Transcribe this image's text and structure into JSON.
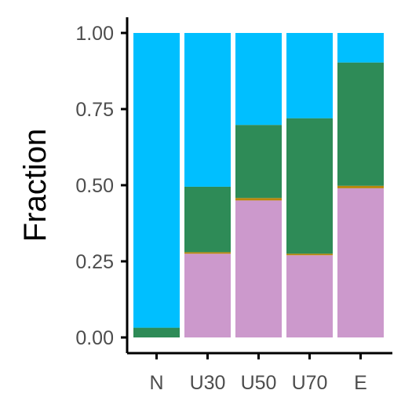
{
  "chart_data": {
    "type": "bar",
    "stacked": true,
    "title": "",
    "xlabel": "",
    "ylabel": "Fraction",
    "ylim": [
      0,
      1
    ],
    "yticks": [
      "0.00",
      "0.25",
      "0.50",
      "0.75",
      "1.00"
    ],
    "categories": [
      "N",
      "U30",
      "U50",
      "U70",
      "E"
    ],
    "grid": false,
    "legend": "none",
    "series": [
      {
        "color": "#CC99CC",
        "values": [
          0.0,
          0.275,
          0.45,
          0.27,
          0.49
        ]
      },
      {
        "color": "#B8860B",
        "values": [
          0.0,
          0.005,
          0.008,
          0.005,
          0.008
        ]
      },
      {
        "color": "#2E8B57",
        "values": [
          0.032,
          0.215,
          0.24,
          0.445,
          0.405
        ]
      },
      {
        "color": "#00BFFF",
        "values": [
          0.968,
          0.505,
          0.302,
          0.28,
          0.097
        ]
      }
    ]
  }
}
